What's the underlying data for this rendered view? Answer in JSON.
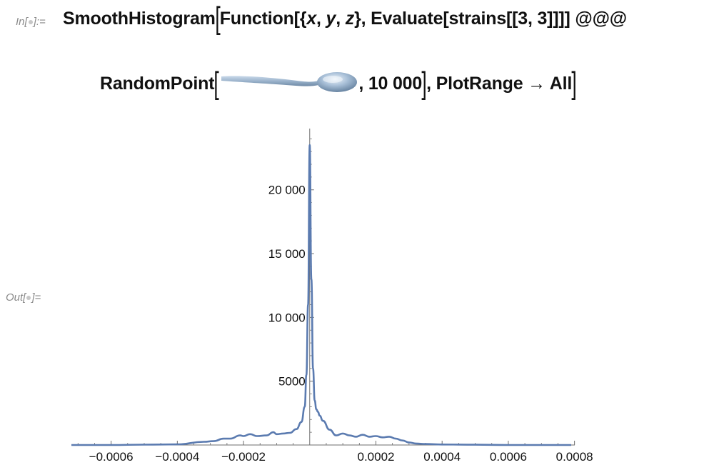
{
  "notebook": {
    "input_label": "In[",
    "input_label_end": "]:=",
    "output_label": "Out[",
    "output_label_end": "]=",
    "code_line1": {
      "head": "SmoothHistogram",
      "p1": "Function[{",
      "x": "x",
      "c1": ", ",
      "y": "y",
      "c2": ", ",
      "z": "z",
      "p2": "}, Evaluate[strains[[3, 3]]]] @@@"
    },
    "code_line2": {
      "head": "RandomPoint",
      "count": ", 10 000",
      "tail": ", PlotRange → All"
    },
    "spoon_icon": "spoon-3d-region-icon"
  },
  "chart_data": {
    "type": "line",
    "title": "",
    "xlabel": "",
    "ylabel": "",
    "xlim": [
      -0.00072,
      0.00079
    ],
    "ylim": [
      0,
      24800
    ],
    "x_ticks": [
      -0.0006,
      -0.0004,
      -0.0002,
      0.0002,
      0.0004,
      0.0006,
      0.0008
    ],
    "x_tick_labels": [
      "−0.0006",
      "−0.0004",
      "−0.0002",
      "0.0002",
      "0.0004",
      "0.0006",
      "0.0008"
    ],
    "y_ticks": [
      5000,
      10000,
      15000,
      20000
    ],
    "y_tick_labels": [
      "5000",
      "10 000",
      "15 000",
      "20 000"
    ],
    "grid": false,
    "color": "#5b7bb0",
    "series": [
      {
        "x": [
          -0.00072,
          -0.0006,
          -0.0005,
          -0.0004,
          -0.00032,
          -0.00029,
          -0.00026,
          -0.00024,
          -0.00021,
          -0.0002,
          -0.00018,
          -0.00016,
          -0.00013,
          -0.00011,
          -0.0001,
          -8e-05,
          -6e-05,
          -4e-05,
          -2.5e-05,
          -1.5e-05,
          -1e-05,
          -5e-06,
          0,
          5e-06,
          1e-05,
          1.5e-05,
          2e-05,
          2.5e-05,
          3e-05,
          4e-05,
          6e-05,
          8e-05,
          0.0001,
          0.00012,
          0.00014,
          0.00016,
          0.00018,
          0.0002,
          0.00022,
          0.00024,
          0.00026,
          0.00028,
          0.0003,
          0.00032,
          0.00035,
          0.0004,
          0.0005,
          0.0006,
          0.0007,
          0.00079
        ],
        "y": [
          0,
          0,
          30,
          50,
          250,
          300,
          500,
          500,
          750,
          700,
          850,
          700,
          750,
          1000,
          850,
          900,
          950,
          1250,
          1800,
          3000,
          5500,
          11000,
          23500,
          13000,
          6000,
          3500,
          2800,
          2600,
          2300,
          1900,
          1200,
          750,
          900,
          750,
          650,
          800,
          650,
          700,
          600,
          650,
          500,
          350,
          200,
          120,
          80,
          40,
          20,
          0,
          0,
          0
        ]
      }
    ]
  }
}
